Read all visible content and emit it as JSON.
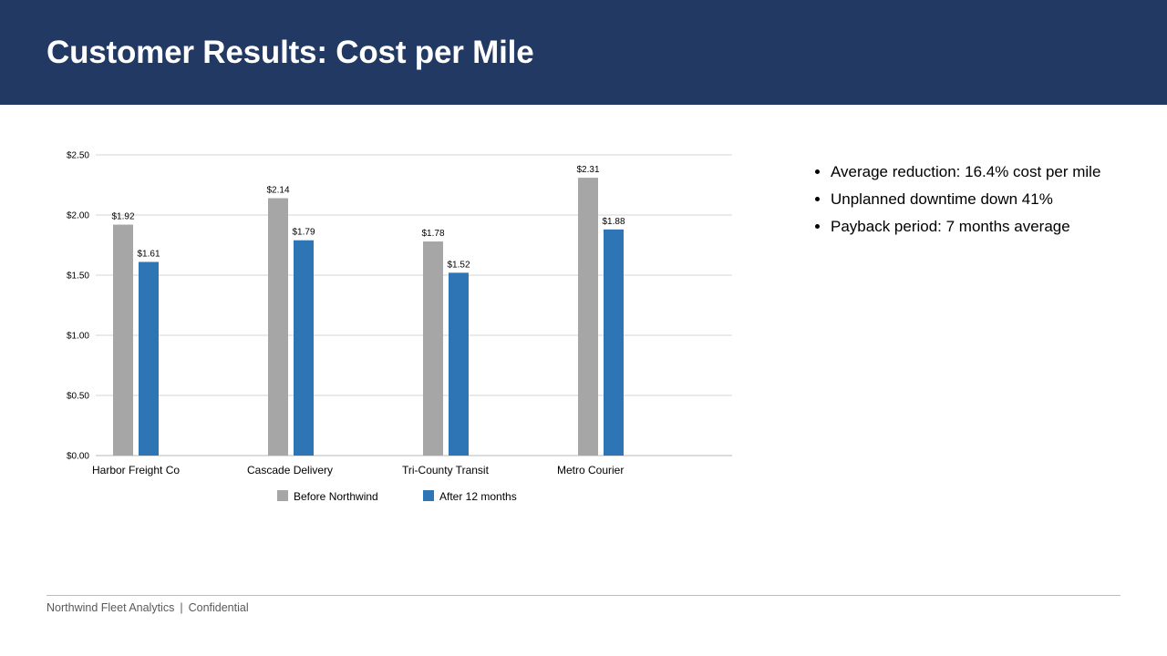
{
  "slide": {
    "title": "Customer Results: Cost per Mile",
    "bullets": [
      "Average reduction: 16.4% cost per mile",
      "Unplanned downtime down 41%",
      "Payback period: 7 months average"
    ],
    "footer": {
      "company": "Northwind Fleet Analytics",
      "separator": "|",
      "label": "Confidential"
    }
  },
  "colors": {
    "header_bg": "#213963",
    "before": "#a6a6a6",
    "after": "#2e75b6"
  },
  "chart_data": {
    "type": "bar",
    "categories": [
      "Harbor Freight Co",
      "Cascade Delivery",
      "Tri-County Transit",
      "Metro Courier"
    ],
    "series": [
      {
        "name": "Before Northwind",
        "values": [
          1.92,
          2.14,
          1.78,
          2.31
        ],
        "labels": [
          "$1.92",
          "$2.14",
          "$1.78",
          "$2.31"
        ]
      },
      {
        "name": "After 12 months",
        "values": [
          1.61,
          1.79,
          1.52,
          1.88
        ],
        "labels": [
          "$1.61",
          "$1.79",
          "$1.52",
          "$1.88"
        ]
      }
    ],
    "yticks": [
      0,
      0.5,
      1,
      1.5,
      2,
      2.5
    ],
    "ytick_labels": [
      "$0.00",
      "$0.50",
      "$1.00",
      "$1.50",
      "$2.00",
      "$2.50"
    ],
    "ylim": [
      0,
      2.5
    ],
    "grid": true,
    "legend_position": "bottom",
    "title": "",
    "xlabel": "",
    "ylabel": ""
  }
}
